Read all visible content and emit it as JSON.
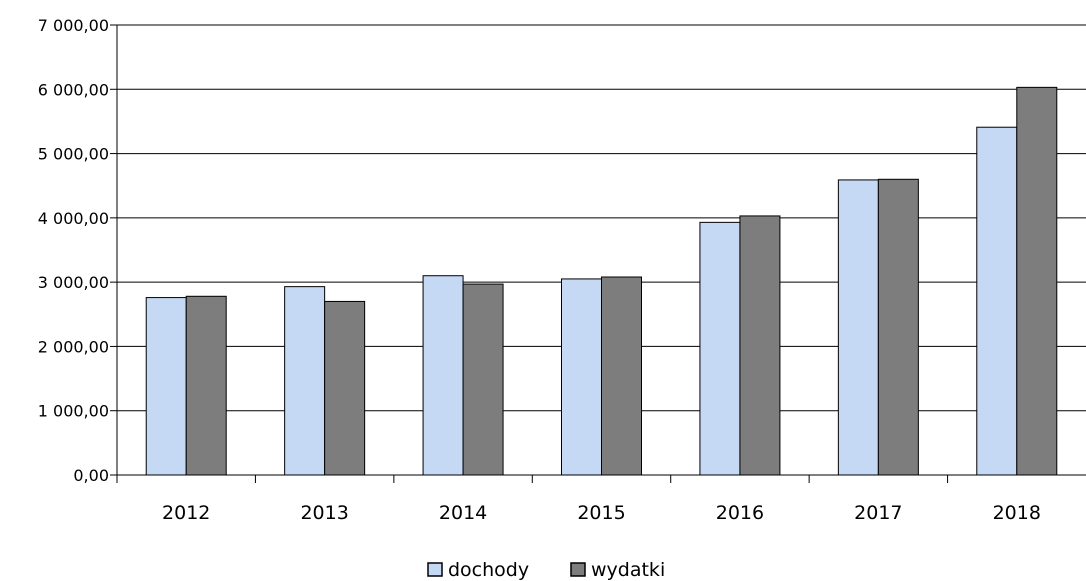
{
  "chart_data": {
    "type": "bar",
    "title": "",
    "xlabel": "",
    "ylabel": "",
    "categories": [
      "2012",
      "2013",
      "2014",
      "2015",
      "2016",
      "2017",
      "2018"
    ],
    "series": [
      {
        "name": "dochody",
        "color": "#c5d9f5",
        "values": [
          2760,
          2930,
          3100,
          3050,
          3930,
          4590,
          5410
        ]
      },
      {
        "name": "wydatki",
        "color": "#7d7d7d",
        "values": [
          2780,
          2700,
          2970,
          3080,
          4030,
          4600,
          6030
        ]
      }
    ],
    "ylim": [
      0,
      7000
    ],
    "yticks": [
      "0,00",
      "1 000,00",
      "2 000,00",
      "3 000,00",
      "4 000,00",
      "5 000,00",
      "6 000,00",
      "7 000,00"
    ],
    "grid": true,
    "legend_position": "bottom-center"
  }
}
